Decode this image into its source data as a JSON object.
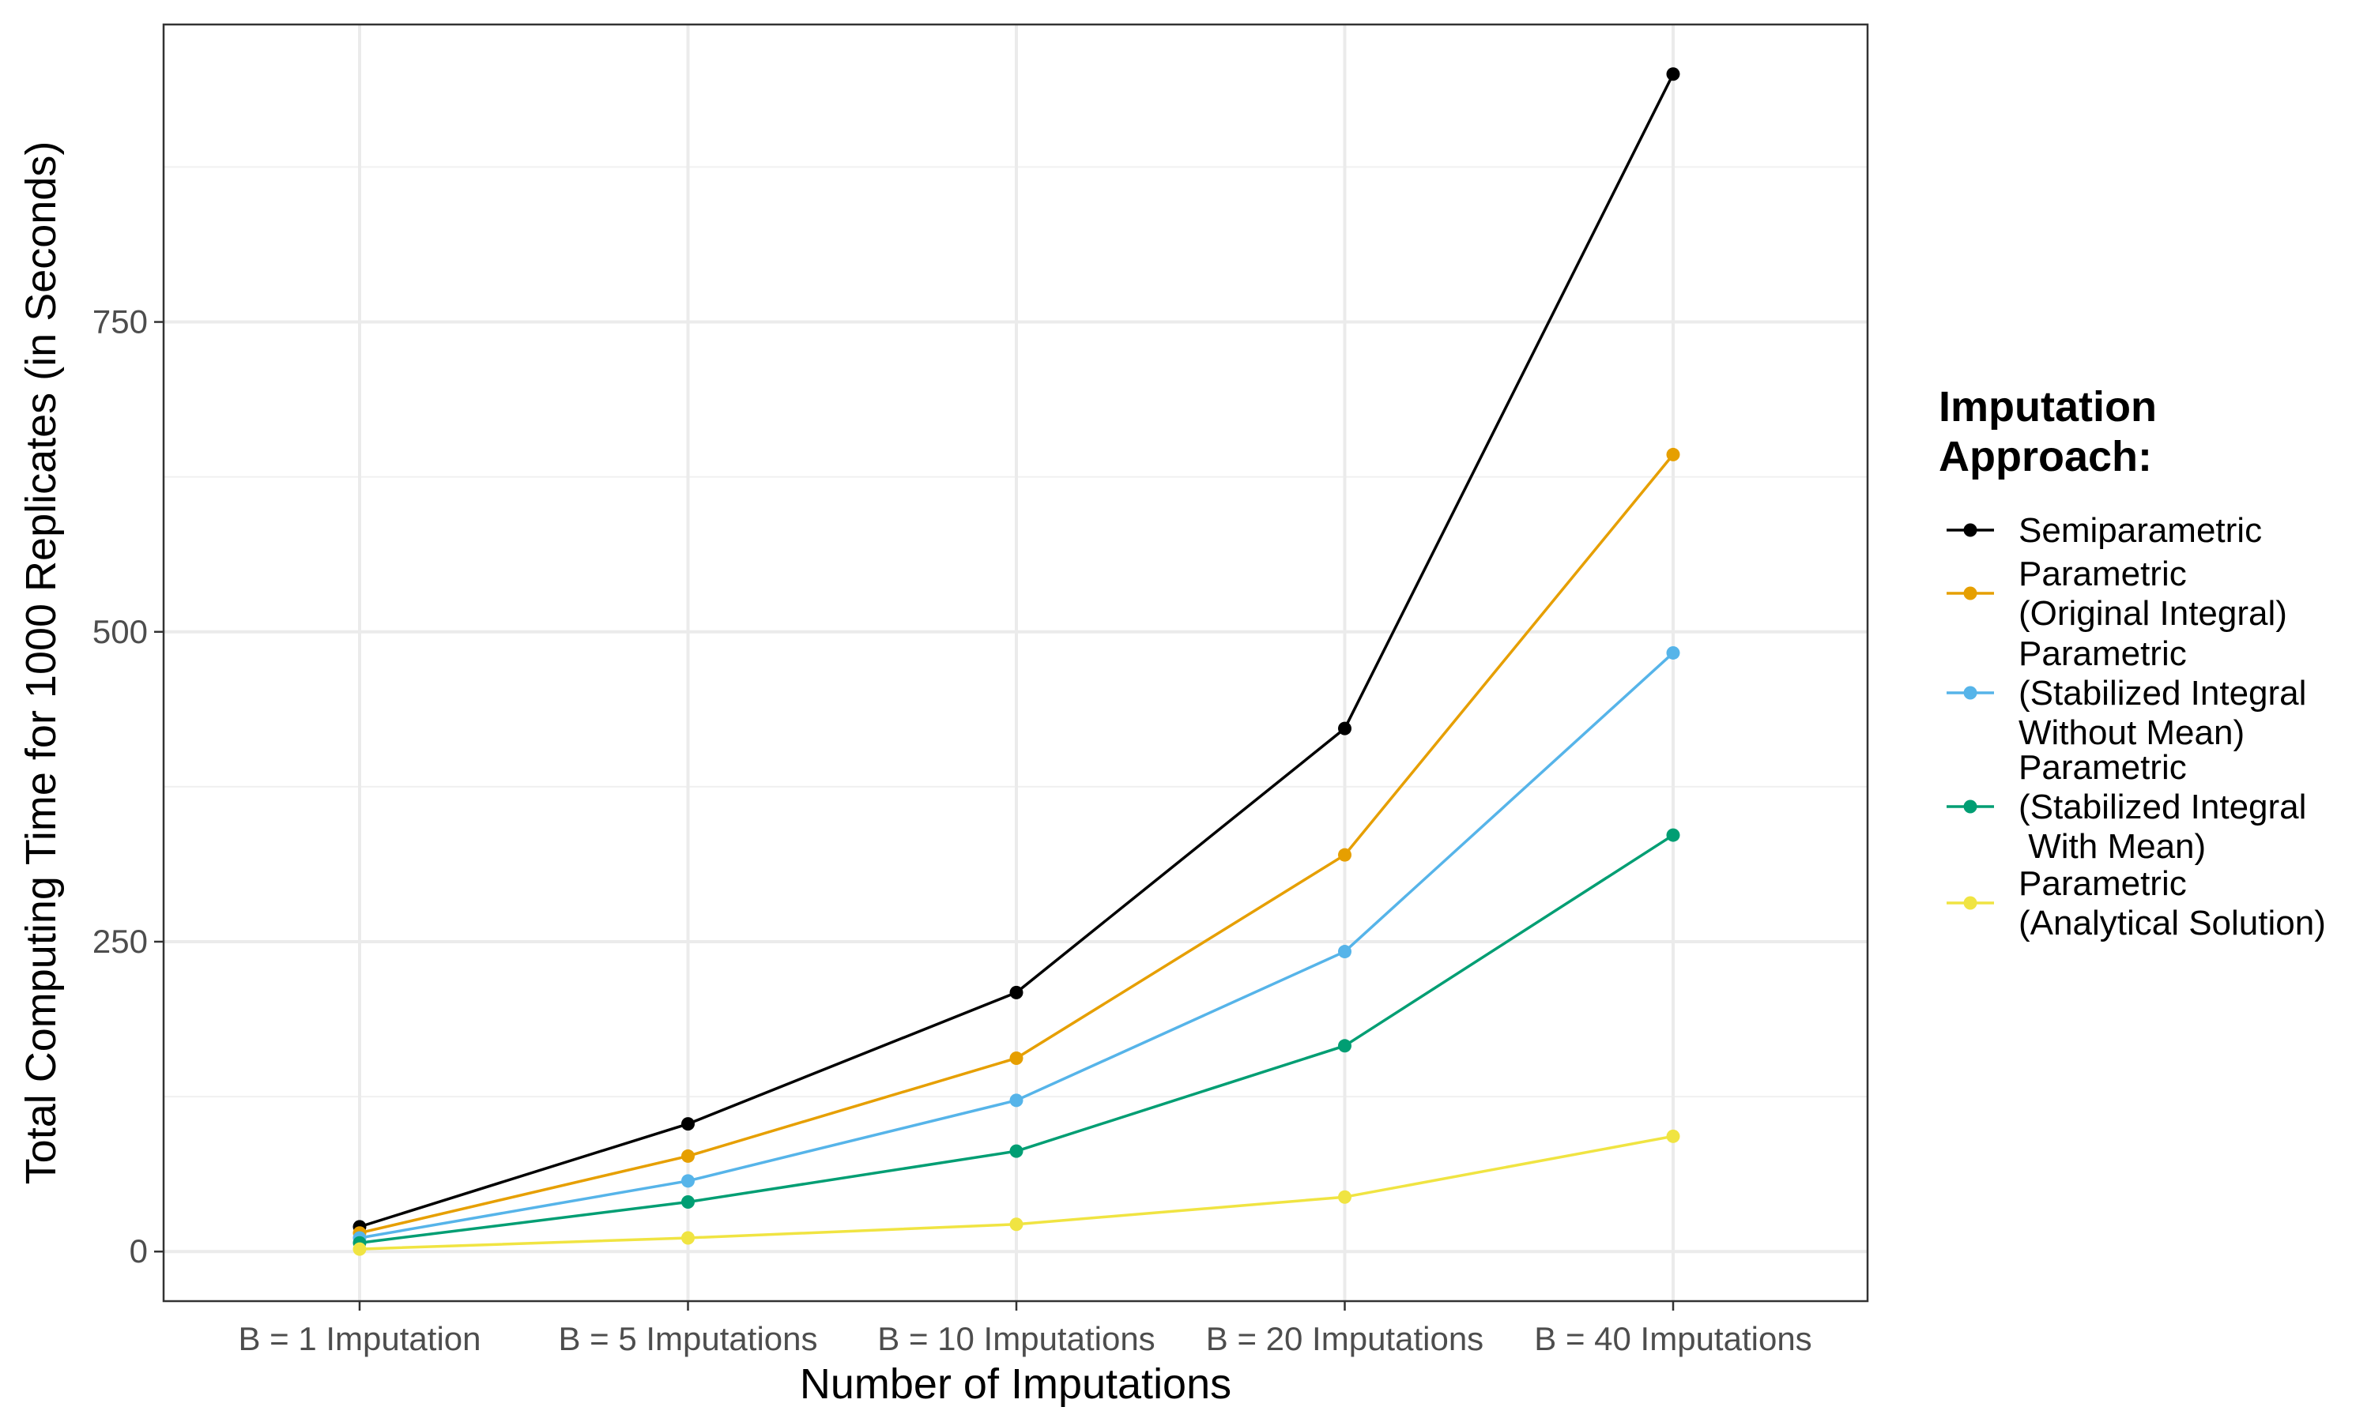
{
  "chart_data": {
    "type": "line",
    "xlabel": "Number of Imputations",
    "ylabel": "Total Computing Time for 1000 Replicates (in Seconds)",
    "categories": [
      "B = 1 Imputation",
      "B = 5 Imputations",
      "B = 10 Imputations",
      "B = 20 Imputations",
      "B = 40 Imputations"
    ],
    "ylim": [
      -40,
      990
    ],
    "yticks": [
      0,
      250,
      500,
      750
    ],
    "grid": true,
    "legend": {
      "title_lines": [
        "Imputation",
        "Approach:"
      ],
      "position": "right"
    },
    "series": [
      {
        "name": "Semiparametric",
        "label_lines": [
          "Semiparametric"
        ],
        "color": "#000000",
        "values": [
          20,
          103,
          209,
          422,
          950
        ]
      },
      {
        "name": "Parametric (Original Integral)",
        "label_lines": [
          "Parametric",
          "(Original Integral)"
        ],
        "color": "#E69F00",
        "values": [
          15,
          77,
          156,
          320,
          643
        ]
      },
      {
        "name": "Parametric (Stabilized Integral Without Mean)",
        "label_lines": [
          "Parametric",
          "(Stabilized Integral",
          "Without Mean)"
        ],
        "color": "#56B4E9",
        "values": [
          11,
          57,
          122,
          242,
          483
        ]
      },
      {
        "name": "Parametric (Stabilized Integral With Mean)",
        "label_lines": [
          "Parametric",
          "(Stabilized Integral",
          " With Mean)"
        ],
        "color": "#009E73",
        "values": [
          7,
          40,
          81,
          166,
          336
        ]
      },
      {
        "name": "Parametric (Analytical Solution)",
        "label_lines": [
          "Parametric",
          "(Analytical Solution)"
        ],
        "color": "#F0E442",
        "values": [
          2,
          11,
          22,
          44,
          93
        ]
      }
    ]
  }
}
